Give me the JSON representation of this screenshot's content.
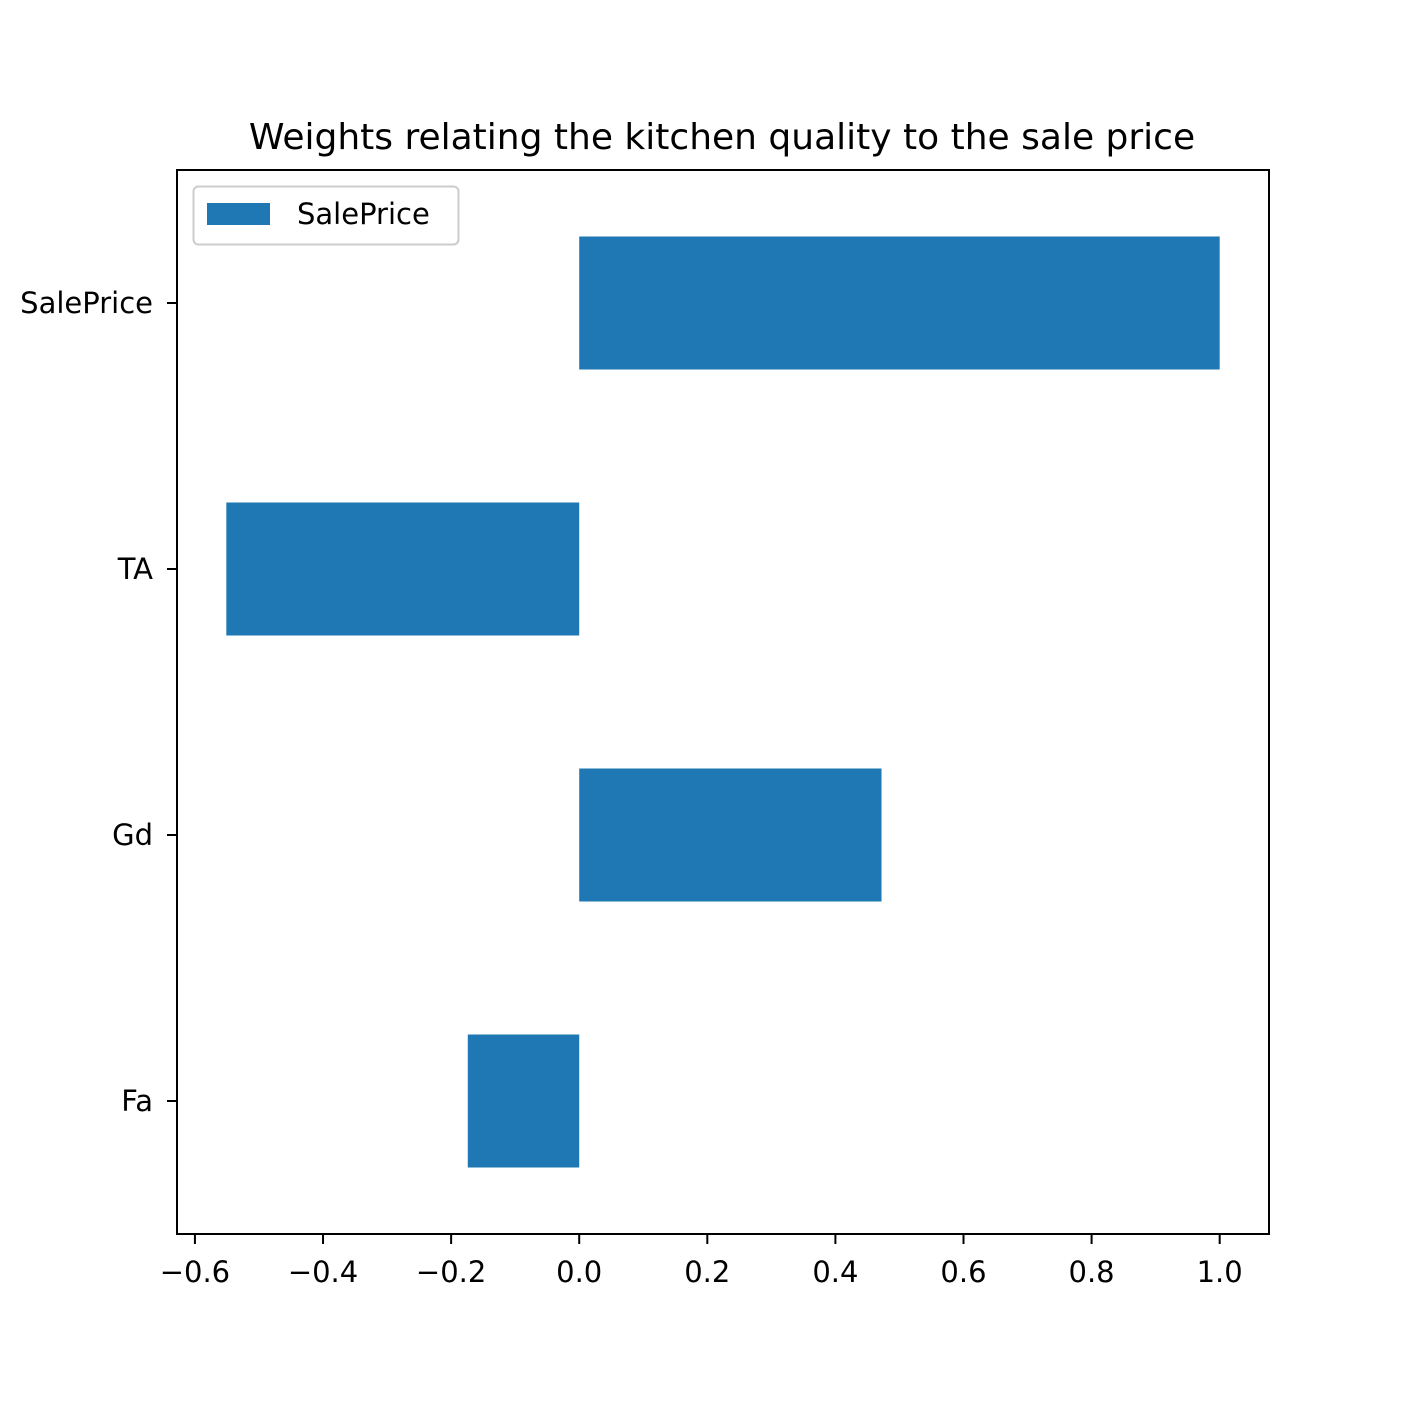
{
  "chart_data": {
    "type": "bar",
    "orientation": "horizontal",
    "title": "Weights relating the kitchen quality to the sale price",
    "xlabel": "",
    "ylabel": "",
    "categories": [
      "Fa",
      "Gd",
      "TA",
      "SalePrice"
    ],
    "series": [
      {
        "name": "SalePrice",
        "color": "#1f77b4",
        "values": [
          -0.174,
          0.472,
          -0.551,
          1.0
        ]
      }
    ],
    "xlim": [
      -0.628,
      1.077
    ],
    "xticks": [
      -0.6,
      -0.4,
      -0.2,
      0.0,
      0.2,
      0.4,
      0.6,
      0.8,
      1.0
    ],
    "xtick_labels": [
      "−0.6",
      "−0.4",
      "−0.2",
      "0.0",
      "0.2",
      "0.4",
      "0.6",
      "0.8",
      "1.0"
    ],
    "grid": false,
    "legend": {
      "position": "top-left",
      "entries": [
        "SalePrice"
      ]
    }
  }
}
